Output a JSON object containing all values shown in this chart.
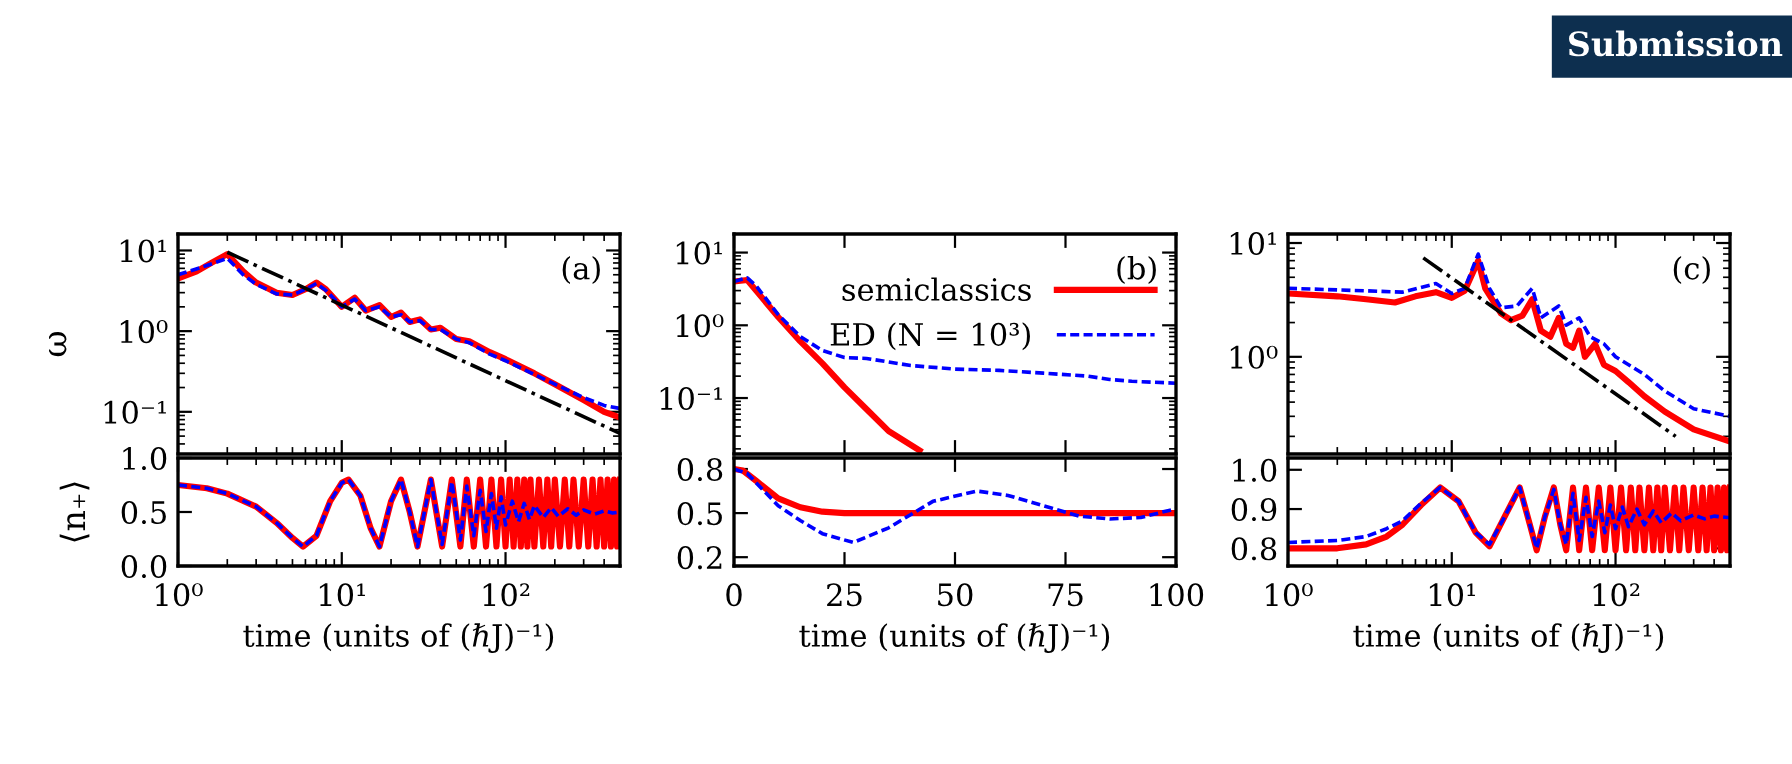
{
  "chart_data": [
    {
      "type": "line",
      "log": "xy",
      "ylabel": "ω",
      "tick_labels": "y",
      "xlim": [
        1,
        500
      ],
      "ylim": [
        0.03,
        16
      ],
      "xticks": [
        {
          "value": 1,
          "label": null
        },
        {
          "value": 10,
          "label": null
        },
        {
          "value": 100,
          "label": null
        }
      ],
      "yticks": [
        {
          "value": 0.1,
          "label": "10⁻¹"
        },
        {
          "value": 1,
          "label": "10⁰"
        },
        {
          "value": 10,
          "label": "10¹"
        }
      ],
      "annotations": [
        "(a)",
        "Submission"
      ],
      "marker": "none",
      "legend": false,
      "series": [
        {
          "color": "#ff0000",
          "line_style": "solid",
          "x": [
            1,
            1.3,
            1.6,
            2,
            2.5,
            3,
            4,
            5,
            6,
            7,
            8,
            10,
            12,
            14,
            17,
            20,
            23,
            26,
            30,
            35,
            40,
            50,
            60,
            80,
            100,
            150,
            200,
            300,
            400,
            500
          ],
          "values": [
            4.5,
            5.5,
            7,
            9,
            5.5,
            4,
            3.0,
            2.8,
            3.3,
            4.0,
            3.3,
            2.0,
            2.6,
            1.8,
            2.1,
            1.5,
            1.7,
            1.3,
            1.4,
            1.05,
            1.1,
            0.8,
            0.75,
            0.55,
            0.45,
            0.3,
            0.22,
            0.14,
            0.1,
            0.085
          ]
        },
        {
          "color": "#0000ff",
          "line_style": "dashed",
          "x": [
            1,
            1.5,
            2,
            2.5,
            3,
            4,
            5,
            6,
            7,
            8,
            10,
            12,
            14,
            17,
            20,
            23,
            26,
            30,
            35,
            40,
            50,
            60,
            80,
            100,
            150,
            200,
            300,
            400,
            500
          ],
          "values": [
            5,
            6.5,
            8,
            5,
            3.8,
            2.9,
            2.8,
            3.3,
            3.9,
            3.2,
            2.0,
            2.5,
            1.8,
            2.0,
            1.5,
            1.6,
            1.3,
            1.35,
            1.05,
            1.05,
            0.8,
            0.72,
            0.52,
            0.43,
            0.29,
            0.22,
            0.15,
            0.12,
            0.11
          ]
        },
        {
          "color": "#000000",
          "line_style": "dashdot",
          "x": [
            2,
            500
          ],
          "values": [
            9.5,
            0.054
          ]
        }
      ]
    },
    {
      "type": "line",
      "log": "x",
      "ylabel": "⟨n₊⟩",
      "xlabel": "time (units of (ℏJ)⁻¹)",
      "xlim": [
        1,
        500
      ],
      "ylim": [
        0,
        1
      ],
      "xticks": [
        {
          "value": 1,
          "label": "10⁰"
        },
        {
          "value": 10,
          "label": "10¹"
        },
        {
          "value": 100,
          "label": "10²"
        }
      ],
      "yticks": [
        {
          "value": 0,
          "label": "0.0"
        },
        0.5,
        {
          "value": 1,
          "label": "1.0"
        }
      ],
      "marker": "none",
      "legend": false,
      "series": [
        {
          "color": "#ff0000",
          "line_style": "solid",
          "x": [
            1,
            1.5,
            2,
            3,
            4,
            5,
            5.8,
            7,
            8.5,
            10,
            11,
            13,
            15,
            17,
            20,
            23,
            26,
            29,
            35,
            41,
            47,
            53,
            58,
            64,
            70,
            76,
            82,
            88,
            94,
            100,
            106,
            112,
            118,
            124,
            130,
            136,
            142,
            150,
            160,
            170,
            180,
            190,
            200,
            215,
            230,
            245,
            260,
            280,
            300,
            320,
            340,
            360,
            380,
            400,
            420,
            440,
            460,
            480,
            500
          ],
          "values": [
            0.75,
            0.72,
            0.67,
            0.55,
            0.4,
            0.26,
            0.18,
            0.28,
            0.6,
            0.77,
            0.8,
            0.65,
            0.35,
            0.18,
            0.6,
            0.8,
            0.5,
            0.18,
            0.8,
            0.18,
            0.8,
            0.18,
            0.8,
            0.18,
            0.8,
            0.18,
            0.8,
            0.18,
            0.8,
            0.18,
            0.8,
            0.18,
            0.8,
            0.18,
            0.8,
            0.18,
            0.8,
            0.18,
            0.8,
            0.18,
            0.8,
            0.18,
            0.8,
            0.18,
            0.8,
            0.18,
            0.8,
            0.18,
            0.8,
            0.18,
            0.8,
            0.18,
            0.8,
            0.18,
            0.8,
            0.18,
            0.8,
            0.18,
            0.8
          ]
        },
        {
          "color": "#0000ff",
          "line_style": "dashed",
          "x": [
            1,
            1.5,
            2,
            3,
            4,
            5,
            5.8,
            7,
            8.5,
            10,
            11,
            13,
            15,
            17,
            20,
            23,
            26,
            29,
            35,
            41,
            47,
            53,
            58,
            64,
            70,
            76,
            82,
            88,
            94,
            100,
            110,
            120,
            130,
            140,
            150,
            170,
            190,
            210,
            240,
            270,
            300,
            350,
            400,
            450,
            500
          ],
          "values": [
            0.75,
            0.72,
            0.67,
            0.55,
            0.4,
            0.26,
            0.18,
            0.28,
            0.6,
            0.77,
            0.8,
            0.65,
            0.35,
            0.18,
            0.6,
            0.8,
            0.5,
            0.18,
            0.8,
            0.2,
            0.78,
            0.24,
            0.74,
            0.28,
            0.7,
            0.32,
            0.67,
            0.35,
            0.64,
            0.38,
            0.6,
            0.41,
            0.58,
            0.43,
            0.56,
            0.45,
            0.54,
            0.46,
            0.53,
            0.47,
            0.52,
            0.48,
            0.51,
            0.49,
            0.5
          ]
        }
      ]
    },
    {
      "type": "line",
      "log": "y",
      "tick_labels": "y",
      "xlim": [
        0,
        100
      ],
      "ylim": [
        0.017,
        18
      ],
      "xticks": [
        {
          "value": 0,
          "label": null
        },
        {
          "value": 25,
          "label": null
        },
        {
          "value": 50,
          "label": null
        },
        {
          "value": 75,
          "label": null
        },
        {
          "value": 100,
          "label": null
        }
      ],
      "yticks": [
        {
          "value": 0.1,
          "label": "10⁻¹"
        },
        {
          "value": 1,
          "label": "10⁰"
        },
        {
          "value": 10,
          "label": "10¹"
        }
      ],
      "annotations": [
        "(b)"
      ],
      "marker": "none",
      "legend": "top right",
      "series": [
        {
          "name": "semiclassics",
          "color": "#ff0000",
          "line_style": "solid",
          "x": [
            0,
            3,
            5,
            10,
            15,
            20,
            25,
            30,
            35,
            42
          ],
          "values": [
            4,
            4.2,
            3,
            1.3,
            0.6,
            0.3,
            0.14,
            0.07,
            0.035,
            0.019
          ]
        },
        {
          "name": "ED (N = 10³)",
          "color": "#0000ff",
          "line_style": "dashed",
          "x": [
            0,
            3,
            5,
            10,
            15,
            20,
            25,
            30,
            40,
            50,
            60,
            70,
            80,
            85,
            90,
            100
          ],
          "values": [
            4,
            4.5,
            3.5,
            1.4,
            0.7,
            0.45,
            0.36,
            0.35,
            0.28,
            0.25,
            0.24,
            0.22,
            0.2,
            0.18,
            0.17,
            0.16
          ]
        }
      ]
    },
    {
      "type": "line",
      "xlabel": "time (units of (ℏJ)⁻¹)",
      "xlim": [
        0,
        100
      ],
      "ylim": [
        0.14,
        0.875
      ],
      "xticks": [
        0,
        25,
        50,
        75,
        100
      ],
      "yticks": [
        0.2,
        0.5,
        0.8
      ],
      "marker": "none",
      "legend": false,
      "series": [
        {
          "color": "#ff0000",
          "line_style": "solid",
          "x": [
            0,
            2,
            5,
            10,
            15,
            20,
            25,
            100
          ],
          "values": [
            0.8,
            0.79,
            0.72,
            0.6,
            0.54,
            0.51,
            0.5,
            0.5
          ]
        },
        {
          "color": "#0000ff",
          "line_style": "dashed",
          "x": [
            0,
            3,
            10,
            15,
            20,
            27,
            35,
            45,
            55,
            62,
            70,
            78,
            85,
            92,
            100
          ],
          "values": [
            0.8,
            0.77,
            0.55,
            0.45,
            0.36,
            0.3,
            0.4,
            0.58,
            0.65,
            0.62,
            0.55,
            0.48,
            0.46,
            0.47,
            0.53
          ]
        }
      ]
    },
    {
      "type": "line",
      "log": "xy",
      "tick_labels": "y",
      "xlim": [
        1,
        500
      ],
      "ylim": [
        0.14,
        12
      ],
      "xticks": [
        {
          "value": 1,
          "label": null
        },
        {
          "value": 10,
          "label": null
        },
        {
          "value": 100,
          "label": null
        }
      ],
      "yticks": [
        {
          "value": 1,
          "label": "10⁰"
        },
        {
          "value": 10,
          "label": "10¹"
        }
      ],
      "annotations": [
        "(c)"
      ],
      "marker": "none",
      "legend": false,
      "series": [
        {
          "color": "#ff0000",
          "line_style": "solid",
          "x": [
            1,
            2,
            3,
            4.5,
            6,
            8,
            10,
            12,
            14.5,
            16,
            20,
            23,
            27,
            31,
            35,
            40,
            45,
            50,
            55,
            60,
            65,
            75,
            85,
            100,
            120,
            150,
            200,
            300,
            500
          ],
          "values": [
            3.6,
            3.4,
            3.2,
            3.0,
            3.4,
            3.7,
            3.3,
            3.8,
            7,
            4,
            2.4,
            2.1,
            2.3,
            3.2,
            1.7,
            1.5,
            2.2,
            1.3,
            1.2,
            1.7,
            1.0,
            1.3,
            0.85,
            0.75,
            0.6,
            0.45,
            0.33,
            0.23,
            0.18
          ]
        },
        {
          "color": "#0000ff",
          "line_style": "dashed",
          "x": [
            1,
            3,
            5,
            8,
            10,
            12,
            14.5,
            17,
            20,
            25,
            31,
            35,
            45,
            50,
            60,
            70,
            85,
            100,
            150,
            200,
            300,
            500
          ],
          "values": [
            4,
            3.8,
            3.7,
            4.4,
            3.6,
            4,
            8,
            4,
            2.7,
            2.8,
            4,
            2.2,
            2.8,
            1.9,
            2.2,
            1.5,
            1.3,
            1.0,
            0.7,
            0.5,
            0.35,
            0.3
          ]
        },
        {
          "color": "#000000",
          "line_style": "dashdot",
          "x": [
            6.7,
            233
          ],
          "values": [
            7.4,
            0.2
          ]
        }
      ]
    },
    {
      "type": "line",
      "log": "x",
      "xlabel": "time (units of (ℏJ)⁻¹)",
      "xlim": [
        1,
        500
      ],
      "ylim": [
        0.755,
        1.03
      ],
      "xticks": [
        {
          "value": 1,
          "label": "10⁰"
        },
        {
          "value": 10,
          "label": "10¹"
        },
        {
          "value": 100,
          "label": "10²"
        }
      ],
      "yticks": [
        0.8,
        0.9,
        {
          "value": 1,
          "label": "1.0"
        }
      ],
      "marker": "none",
      "legend": false,
      "series": [
        {
          "color": "#ff0000",
          "line_style": "solid",
          "x": [
            1,
            2,
            3,
            4,
            5,
            6.5,
            8.5,
            11,
            14,
            17,
            21,
            26,
            30,
            33,
            37,
            42,
            46,
            50,
            55,
            60,
            66,
            72,
            79,
            86,
            93,
            100,
            108,
            116,
            124,
            132,
            140,
            150,
            160,
            170,
            180,
            190,
            200,
            215,
            230,
            245,
            260,
            280,
            300,
            320,
            340,
            360,
            380,
            400,
            420,
            440,
            460,
            480,
            500
          ],
          "values": [
            0.8,
            0.8,
            0.81,
            0.83,
            0.86,
            0.91,
            0.955,
            0.92,
            0.84,
            0.805,
            0.88,
            0.955,
            0.86,
            0.795,
            0.88,
            0.955,
            0.86,
            0.795,
            0.955,
            0.795,
            0.955,
            0.795,
            0.955,
            0.795,
            0.955,
            0.795,
            0.955,
            0.795,
            0.955,
            0.795,
            0.955,
            0.795,
            0.955,
            0.795,
            0.955,
            0.795,
            0.955,
            0.795,
            0.955,
            0.795,
            0.955,
            0.795,
            0.955,
            0.795,
            0.955,
            0.795,
            0.955,
            0.795,
            0.955,
            0.795,
            0.955,
            0.795,
            0.955
          ]
        },
        {
          "color": "#0000ff",
          "line_style": "dashed",
          "x": [
            1,
            2,
            3,
            4,
            5,
            6.5,
            8.5,
            11,
            14,
            17,
            21,
            26,
            30,
            33,
            37,
            42,
            46,
            50,
            55,
            60,
            66,
            72,
            79,
            86,
            93,
            100,
            110,
            120,
            135,
            150,
            170,
            190,
            220,
            250,
            300,
            350,
            400,
            500
          ],
          "values": [
            0.815,
            0.82,
            0.83,
            0.85,
            0.87,
            0.915,
            0.955,
            0.92,
            0.84,
            0.81,
            0.88,
            0.955,
            0.86,
            0.8,
            0.88,
            0.95,
            0.86,
            0.81,
            0.94,
            0.82,
            0.93,
            0.83,
            0.92,
            0.84,
            0.91,
            0.85,
            0.905,
            0.855,
            0.9,
            0.86,
            0.895,
            0.865,
            0.89,
            0.87,
            0.885,
            0.875,
            0.882,
            0.878
          ]
        }
      ]
    }
  ]
}
